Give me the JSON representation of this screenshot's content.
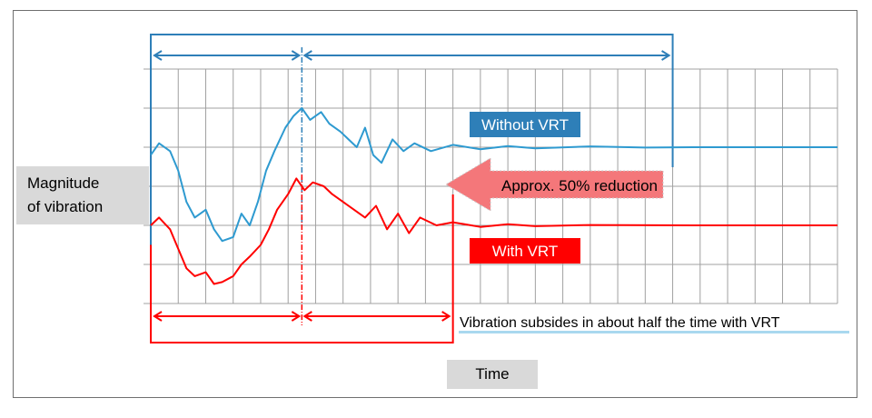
{
  "chart_data": {
    "type": "line",
    "title": "",
    "xlabel": "Time",
    "ylabel": "Magnitude of vibration",
    "grid": true,
    "x_range": [
      0,
      25
    ],
    "y_range": [
      0,
      6
    ],
    "x_unit": "grid divisions",
    "y_unit": "grid divisions",
    "series": [
      {
        "name": "Without VRT",
        "color": "#2e9ad0",
        "baseline": 4,
        "settle_time": 19,
        "points": [
          [
            0,
            3.8
          ],
          [
            0.3,
            4.1
          ],
          [
            0.7,
            3.9
          ],
          [
            1,
            3.4
          ],
          [
            1.3,
            2.6
          ],
          [
            1.6,
            2.2
          ],
          [
            2,
            2.4
          ],
          [
            2.3,
            1.9
          ],
          [
            2.6,
            1.6
          ],
          [
            3,
            1.7
          ],
          [
            3.3,
            2.3
          ],
          [
            3.6,
            2.0
          ],
          [
            3.9,
            2.6
          ],
          [
            4.2,
            3.4
          ],
          [
            4.5,
            3.9
          ],
          [
            4.9,
            4.5
          ],
          [
            5.2,
            4.8
          ],
          [
            5.5,
            5.0
          ],
          [
            5.8,
            4.7
          ],
          [
            6.2,
            4.9
          ],
          [
            6.5,
            4.6
          ],
          [
            6.9,
            4.4
          ],
          [
            7.2,
            4.2
          ],
          [
            7.5,
            4.0
          ],
          [
            7.8,
            4.5
          ],
          [
            8.1,
            3.8
          ],
          [
            8.4,
            3.6
          ],
          [
            8.8,
            4.2
          ],
          [
            9.2,
            3.9
          ],
          [
            9.6,
            4.1
          ],
          [
            10.2,
            3.9
          ],
          [
            11,
            4.06
          ],
          [
            12,
            3.95
          ],
          [
            13,
            4.03
          ],
          [
            14,
            3.97
          ],
          [
            16,
            4.02
          ],
          [
            18,
            3.99
          ],
          [
            20,
            4.0
          ],
          [
            25,
            4.0
          ]
        ]
      },
      {
        "name": "With VRT",
        "color": "#ff0000",
        "baseline": 2,
        "settle_time": 11,
        "points": [
          [
            0,
            2.0
          ],
          [
            0.3,
            2.2
          ],
          [
            0.7,
            1.9
          ],
          [
            1,
            1.4
          ],
          [
            1.3,
            0.9
          ],
          [
            1.6,
            0.7
          ],
          [
            2,
            0.8
          ],
          [
            2.3,
            0.5
          ],
          [
            2.6,
            0.55
          ],
          [
            3,
            0.7
          ],
          [
            3.3,
            1.0
          ],
          [
            3.6,
            1.2
          ],
          [
            4,
            1.5
          ],
          [
            4.3,
            1.9
          ],
          [
            4.6,
            2.4
          ],
          [
            5,
            2.8
          ],
          [
            5.3,
            3.2
          ],
          [
            5.6,
            2.9
          ],
          [
            5.9,
            3.1
          ],
          [
            6.3,
            3.0
          ],
          [
            6.6,
            2.8
          ],
          [
            7,
            2.6
          ],
          [
            7.4,
            2.4
          ],
          [
            7.8,
            2.2
          ],
          [
            8.2,
            2.5
          ],
          [
            8.6,
            1.9
          ],
          [
            9,
            2.3
          ],
          [
            9.4,
            1.8
          ],
          [
            9.8,
            2.2
          ],
          [
            10.4,
            2.0
          ],
          [
            11,
            2.08
          ],
          [
            12,
            1.96
          ],
          [
            13,
            2.03
          ],
          [
            14,
            1.98
          ],
          [
            16,
            2.01
          ],
          [
            20,
            2.0
          ],
          [
            25,
            2.0
          ]
        ]
      }
    ],
    "annotations": {
      "without_label": "Without VRT",
      "with_label": "With VRT",
      "reduction": "Approx. 50% reduction",
      "note": "Vibration subsides in about half the time with VRT"
    },
    "markers": {
      "shared_split_time": 5.5
    }
  },
  "colors": {
    "blue": "#2e9ad0",
    "blue_box": "#2e7fb8",
    "red": "#ff0000",
    "arrow": "#f4777a",
    "grid": "#a0a0a0",
    "label_bg": "#d9d9d9",
    "note_underline": "#a9d8ef"
  }
}
